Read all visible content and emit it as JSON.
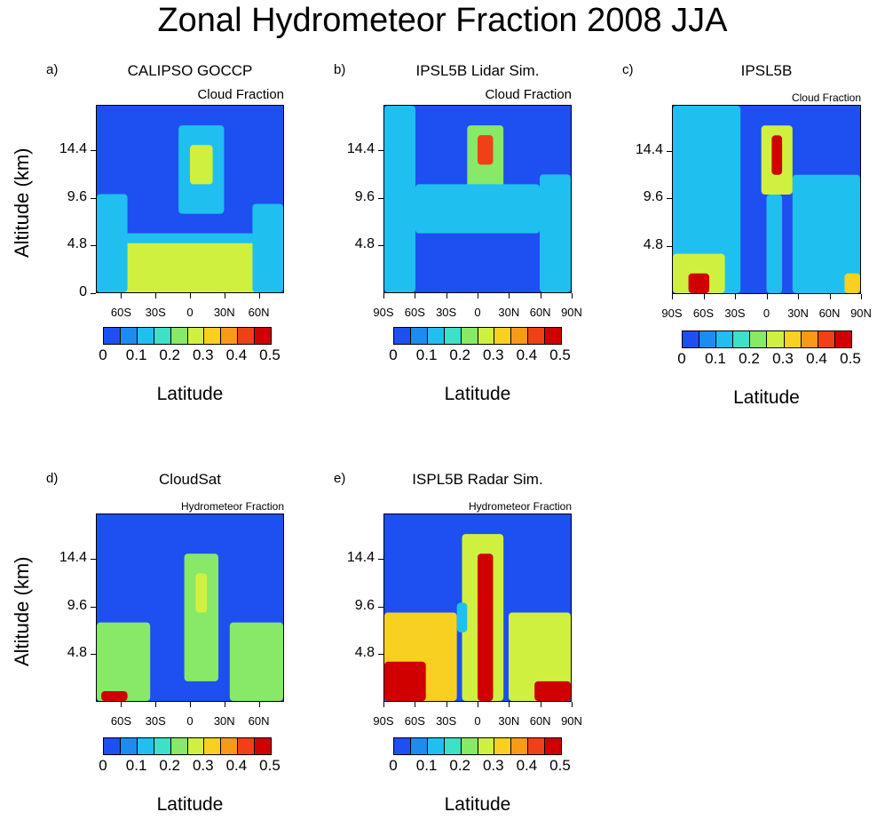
{
  "title": "Zonal Hydrometeor Fraction 2008 JJA",
  "colors": {
    "levels": [
      "#1e4ff0",
      "#1d8cf0",
      "#1fc0f0",
      "#3fe0c8",
      "#88e868",
      "#d0f040",
      "#f8d020",
      "#f89a18",
      "#f04018",
      "#d00000"
    ],
    "background": "#1e4ff0"
  },
  "colorbar_ticks": [
    "0",
    "0.1",
    "0.2",
    "0.3",
    "0.4",
    "0.5"
  ],
  "panels": [
    {
      "label": "a)",
      "title": "CALIPSO GOCCP",
      "subtitle": "Cloud Fraction",
      "ylabel": "Altitude (km)",
      "xlabel": "Latitude",
      "yticks": [
        "14.4",
        "9.6",
        "4.8",
        "0"
      ],
      "xticks": [
        "60S",
        "30S",
        "0",
        "30N",
        "60N"
      ]
    },
    {
      "label": "b)",
      "title": "IPSL5B Lidar Sim.",
      "subtitle": "Cloud Fraction",
      "ylabel": "",
      "xlabel": "Latitude",
      "yticks": [
        "14.4",
        "9.6",
        "4.8"
      ],
      "xticks": [
        "90S",
        "60S",
        "30S",
        "0",
        "30N",
        "60N",
        "90N"
      ]
    },
    {
      "label": "c)",
      "title": "IPSL5B",
      "subtitle": "Cloud Fraction",
      "ylabel": "",
      "xlabel": "Latitude",
      "yticks": [
        "14.4",
        "9.6",
        "4.8"
      ],
      "xticks": [
        "90S",
        "60S",
        "30S",
        "0",
        "30N",
        "60N",
        "90N"
      ]
    },
    {
      "label": "d)",
      "title": "CloudSat",
      "subtitle": "Hydrometeor Fraction",
      "ylabel": "Altitude (km)",
      "xlabel": "Latitude",
      "yticks": [
        "14.4",
        "9.6",
        "4.8"
      ],
      "xticks": [
        "60S",
        "30S",
        "0",
        "30N",
        "60N"
      ]
    },
    {
      "label": "e)",
      "title": "ISPL5B Radar Sim.",
      "subtitle": "Hydrometeor Fraction",
      "ylabel": "",
      "xlabel": "Latitude",
      "yticks": [
        "14.4",
        "9.6",
        "4.8"
      ],
      "xticks": [
        "90S",
        "60S",
        "30S",
        "0",
        "30N",
        "60N",
        "90N"
      ]
    }
  ],
  "chart_data": [
    {
      "type": "heatmap",
      "title": "CALIPSO GOCCP",
      "subtitle": "Cloud Fraction",
      "xlabel": "Latitude",
      "ylabel": "Altitude (km)",
      "colorbar_range": [
        0,
        0.5
      ],
      "features": [
        {
          "lat": [
            -82,
            82
          ],
          "alt": [
            0,
            6
          ],
          "value": 0.15
        },
        {
          "lat": [
            -60,
            60
          ],
          "alt": [
            0,
            5
          ],
          "value": 0.25
        },
        {
          "lat": [
            -10,
            30
          ],
          "alt": [
            8,
            17
          ],
          "value": 0.15
        },
        {
          "lat": [
            0,
            20
          ],
          "alt": [
            11,
            15
          ],
          "value": 0.25
        },
        {
          "lat": [
            -82,
            -55
          ],
          "alt": [
            0,
            10
          ],
          "value": 0.15
        },
        {
          "lat": [
            55,
            82
          ],
          "alt": [
            0,
            9
          ],
          "value": 0.15
        }
      ]
    },
    {
      "type": "heatmap",
      "title": "IPSL5B Lidar Sim.",
      "subtitle": "Cloud Fraction",
      "xlabel": "Latitude",
      "ylabel": "",
      "colorbar_range": [
        0,
        0.5
      ],
      "features": [
        {
          "lat": [
            -90,
            -60
          ],
          "alt": [
            0,
            19
          ],
          "value": 0.15
        },
        {
          "lat": [
            60,
            90
          ],
          "alt": [
            0,
            12
          ],
          "value": 0.15
        },
        {
          "lat": [
            -10,
            25
          ],
          "alt": [
            10,
            17
          ],
          "value": 0.2
        },
        {
          "lat": [
            0,
            15
          ],
          "alt": [
            13,
            16
          ],
          "value": 0.4
        },
        {
          "lat": [
            -60,
            60
          ],
          "alt": [
            6,
            11
          ],
          "value": 0.12
        }
      ]
    },
    {
      "type": "heatmap",
      "title": "IPSL5B",
      "subtitle": "Cloud Fraction",
      "xlabel": "Latitude",
      "ylabel": "",
      "colorbar_range": [
        0,
        0.5
      ],
      "features": [
        {
          "lat": [
            -90,
            -25
          ],
          "alt": [
            0,
            19
          ],
          "value": 0.15
        },
        {
          "lat": [
            25,
            90
          ],
          "alt": [
            0,
            12
          ],
          "value": 0.15
        },
        {
          "lat": [
            -90,
            -40
          ],
          "alt": [
            0,
            4
          ],
          "value": 0.3
        },
        {
          "lat": [
            -75,
            -55
          ],
          "alt": [
            0,
            2
          ],
          "value": 0.48
        },
        {
          "lat": [
            75,
            90
          ],
          "alt": [
            0,
            2
          ],
          "value": 0.35
        },
        {
          "lat": [
            -5,
            25
          ],
          "alt": [
            10,
            17
          ],
          "value": 0.25
        },
        {
          "lat": [
            5,
            15
          ],
          "alt": [
            12,
            16
          ],
          "value": 0.45
        },
        {
          "lat": [
            0,
            15
          ],
          "alt": [
            0,
            10
          ],
          "value": 0.12
        }
      ]
    },
    {
      "type": "heatmap",
      "title": "CloudSat",
      "subtitle": "Hydrometeor Fraction",
      "xlabel": "Latitude",
      "ylabel": "Altitude (km)",
      "colorbar_range": [
        0,
        0.5
      ],
      "features": [
        {
          "lat": [
            -82,
            -35
          ],
          "alt": [
            0,
            8
          ],
          "value": 0.2
        },
        {
          "lat": [
            35,
            82
          ],
          "alt": [
            0,
            8
          ],
          "value": 0.2
        },
        {
          "lat": [
            -78,
            -55
          ],
          "alt": [
            0,
            1
          ],
          "value": 0.45
        },
        {
          "lat": [
            -5,
            25
          ],
          "alt": [
            2,
            15
          ],
          "value": 0.2
        },
        {
          "lat": [
            5,
            15
          ],
          "alt": [
            9,
            13
          ],
          "value": 0.3
        }
      ]
    },
    {
      "type": "heatmap",
      "title": "ISPL5B Radar Sim.",
      "subtitle": "Hydrometeor Fraction",
      "xlabel": "Latitude",
      "ylabel": "",
      "colorbar_range": [
        0,
        0.5
      ],
      "features": [
        {
          "lat": [
            -90,
            -20
          ],
          "alt": [
            0,
            9
          ],
          "value": 0.35
        },
        {
          "lat": [
            30,
            90
          ],
          "alt": [
            0,
            9
          ],
          "value": 0.3
        },
        {
          "lat": [
            -90,
            -50
          ],
          "alt": [
            0,
            4
          ],
          "value": 0.45
        },
        {
          "lat": [
            55,
            90
          ],
          "alt": [
            0,
            2
          ],
          "value": 0.48
        },
        {
          "lat": [
            -15,
            25
          ],
          "alt": [
            0,
            17
          ],
          "value": 0.3
        },
        {
          "lat": [
            0,
            15
          ],
          "alt": [
            0,
            15
          ],
          "value": 0.48
        },
        {
          "lat": [
            -20,
            -10
          ],
          "alt": [
            7,
            10
          ],
          "value": 0.1
        }
      ]
    }
  ]
}
